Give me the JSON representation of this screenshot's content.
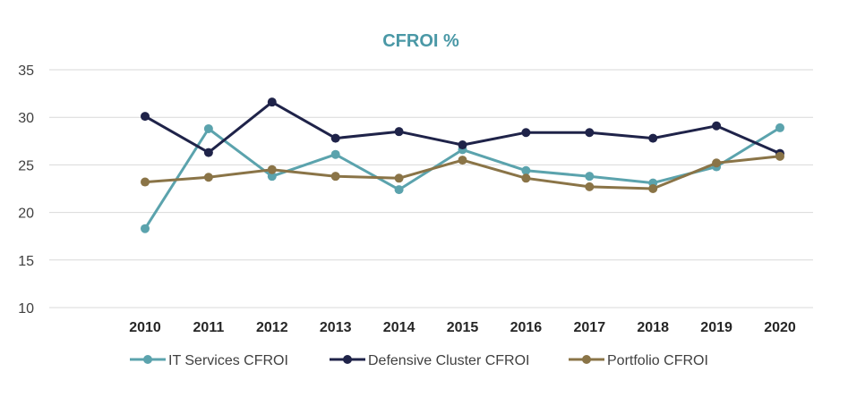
{
  "chart_data": {
    "type": "line",
    "title": "CFROI %",
    "xlabel": "",
    "ylabel": "",
    "x": [
      "2010",
      "2011",
      "2012",
      "2013",
      "2014",
      "2015",
      "2016",
      "2017",
      "2018",
      "2019",
      "2020"
    ],
    "ylim": [
      10,
      35
    ],
    "yticks": [
      "35",
      "30",
      "25",
      "20",
      "15",
      "10"
    ],
    "grid": true,
    "legend_position": "bottom",
    "series": [
      {
        "name": "IT Services CFROI",
        "color": "#5ba3ad",
        "values": [
          18.3,
          28.8,
          23.8,
          26.1,
          22.4,
          26.6,
          24.4,
          23.8,
          23.1,
          24.8,
          28.9
        ]
      },
      {
        "name": "Defensive Cluster CFROI",
        "color": "#1f2349",
        "values": [
          30.1,
          26.3,
          31.6,
          27.8,
          28.5,
          27.1,
          28.4,
          28.4,
          27.8,
          29.1,
          26.2
        ]
      },
      {
        "name": "Portfolio CFROI",
        "color": "#8a7447",
        "values": [
          23.2,
          23.7,
          24.5,
          23.8,
          23.6,
          25.5,
          23.6,
          22.7,
          22.5,
          25.2,
          25.9
        ]
      }
    ]
  }
}
